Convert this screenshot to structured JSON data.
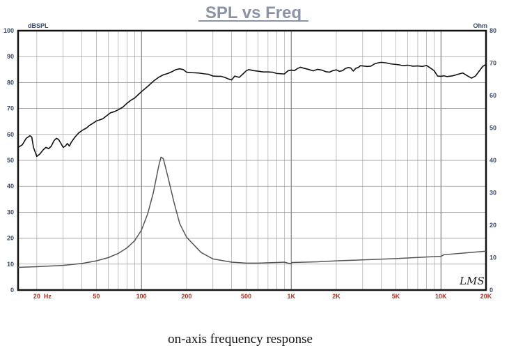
{
  "caption": "on-axis frequency response",
  "chart_data": {
    "type": "line",
    "title": "SPL vs Freq",
    "left_axis": {
      "label": "dBSPL",
      "ylim": [
        0,
        100
      ],
      "ticks": [
        0,
        10,
        20,
        30,
        40,
        50,
        60,
        70,
        80,
        90,
        100
      ]
    },
    "right_axis": {
      "label": "Ohm",
      "ylim": [
        0,
        80
      ],
      "ticks": [
        0,
        10,
        20,
        30,
        40,
        50,
        60,
        70,
        80
      ]
    },
    "x_axis": {
      "scale": "log",
      "xlim": [
        15,
        20000
      ],
      "unit_label": "Hz",
      "ticks": [
        {
          "value": 20,
          "label": "20"
        },
        {
          "value": 50,
          "label": "50"
        },
        {
          "value": 100,
          "label": "100"
        },
        {
          "value": 200,
          "label": "200"
        },
        {
          "value": 500,
          "label": "500"
        },
        {
          "value": 1000,
          "label": "1K"
        },
        {
          "value": 2000,
          "label": "2K"
        },
        {
          "value": 5000,
          "label": "5K"
        },
        {
          "value": 10000,
          "label": "10K"
        },
        {
          "value": 20000,
          "label": "20K"
        }
      ]
    },
    "grid": true,
    "logo_text": "LMS",
    "series": [
      {
        "axis": "left",
        "color": "#111111",
        "points": [
          [
            15,
            55
          ],
          [
            16,
            56
          ],
          [
            17,
            58.5
          ],
          [
            18,
            59.5
          ],
          [
            18.5,
            59
          ],
          [
            19,
            55
          ],
          [
            20,
            51.5
          ],
          [
            21,
            52.5
          ],
          [
            22,
            54
          ],
          [
            23,
            55
          ],
          [
            24,
            54.5
          ],
          [
            25,
            55.5
          ],
          [
            26,
            57.5
          ],
          [
            27,
            58.5
          ],
          [
            28,
            58
          ],
          [
            29,
            56.5
          ],
          [
            30,
            55
          ],
          [
            31,
            55.5
          ],
          [
            32,
            56.5
          ],
          [
            33,
            55.5
          ],
          [
            34,
            57
          ],
          [
            36,
            59
          ],
          [
            38,
            60.5
          ],
          [
            40,
            61.5
          ],
          [
            43,
            62.5
          ],
          [
            45,
            63.5
          ],
          [
            48,
            64.5
          ],
          [
            50,
            65.2
          ],
          [
            55,
            66
          ],
          [
            58,
            67
          ],
          [
            62,
            68.3
          ],
          [
            66,
            68.8
          ],
          [
            70,
            69.5
          ],
          [
            75,
            70.5
          ],
          [
            80,
            72
          ],
          [
            85,
            73.2
          ],
          [
            90,
            74
          ],
          [
            95,
            75.3
          ],
          [
            100,
            76.5
          ],
          [
            110,
            78.5
          ],
          [
            120,
            80.5
          ],
          [
            130,
            82
          ],
          [
            140,
            83
          ],
          [
            150,
            83.5
          ],
          [
            160,
            84.2
          ],
          [
            170,
            85
          ],
          [
            180,
            85.3
          ],
          [
            190,
            85
          ],
          [
            200,
            84
          ],
          [
            220,
            83.8
          ],
          [
            240,
            83.7
          ],
          [
            260,
            83.4
          ],
          [
            280,
            83.2
          ],
          [
            300,
            82.5
          ],
          [
            320,
            82.4
          ],
          [
            340,
            82.4
          ],
          [
            360,
            82
          ],
          [
            380,
            81.4
          ],
          [
            400,
            81
          ],
          [
            420,
            82.5
          ],
          [
            450,
            82
          ],
          [
            480,
            83.5
          ],
          [
            500,
            84.5
          ],
          [
            520,
            85
          ],
          [
            560,
            84.6
          ],
          [
            600,
            84.4
          ],
          [
            650,
            84.1
          ],
          [
            700,
            84.1
          ],
          [
            750,
            84
          ],
          [
            800,
            83.5
          ],
          [
            850,
            83.4
          ],
          [
            900,
            83.3
          ],
          [
            950,
            84.5
          ],
          [
            1000,
            84.8
          ],
          [
            1050,
            84.6
          ],
          [
            1100,
            85.4
          ],
          [
            1150,
            85.9
          ],
          [
            1200,
            85.6
          ],
          [
            1300,
            85.1
          ],
          [
            1400,
            84.5
          ],
          [
            1500,
            85.1
          ],
          [
            1600,
            84.8
          ],
          [
            1700,
            84.2
          ],
          [
            1800,
            84
          ],
          [
            1900,
            84.6
          ],
          [
            2000,
            84.9
          ],
          [
            2100,
            84.3
          ],
          [
            2200,
            84.6
          ],
          [
            2300,
            85.4
          ],
          [
            2400,
            85.8
          ],
          [
            2500,
            85.6
          ],
          [
            2600,
            84.4
          ],
          [
            2700,
            85.5
          ],
          [
            2800,
            85.8
          ],
          [
            2900,
            86.5
          ],
          [
            3000,
            86.4
          ],
          [
            3200,
            86.2
          ],
          [
            3400,
            86.3
          ],
          [
            3600,
            87.2
          ],
          [
            3800,
            87.6
          ],
          [
            4000,
            87.8
          ],
          [
            4300,
            87.6
          ],
          [
            4600,
            87.2
          ],
          [
            5000,
            87
          ],
          [
            5300,
            86.8
          ],
          [
            5600,
            86.5
          ],
          [
            6000,
            86.7
          ],
          [
            6500,
            86.3
          ],
          [
            7000,
            86.4
          ],
          [
            7500,
            86.2
          ],
          [
            8000,
            86.6
          ],
          [
            8500,
            85.6
          ],
          [
            9000,
            84.6
          ],
          [
            9500,
            82.5
          ],
          [
            10000,
            82.4
          ],
          [
            10500,
            82.6
          ],
          [
            11000,
            82.3
          ],
          [
            12000,
            82.6
          ],
          [
            13000,
            83.2
          ],
          [
            14000,
            83.7
          ],
          [
            15000,
            82.6
          ],
          [
            16000,
            81.7
          ],
          [
            17000,
            82.5
          ],
          [
            18000,
            84.4
          ],
          [
            19000,
            86.2
          ],
          [
            20000,
            87
          ]
        ]
      },
      {
        "axis": "right",
        "color": "#555555",
        "points": [
          [
            15,
            7
          ],
          [
            20,
            7.2
          ],
          [
            30,
            7.6
          ],
          [
            40,
            8.2
          ],
          [
            50,
            9
          ],
          [
            60,
            10
          ],
          [
            70,
            11.3
          ],
          [
            80,
            13
          ],
          [
            90,
            15.2
          ],
          [
            100,
            18.5
          ],
          [
            110,
            23.5
          ],
          [
            120,
            30
          ],
          [
            130,
            38
          ],
          [
            135,
            41
          ],
          [
            140,
            40.5
          ],
          [
            150,
            35
          ],
          [
            165,
            27
          ],
          [
            180,
            20.5
          ],
          [
            200,
            16.3
          ],
          [
            250,
            11.6
          ],
          [
            300,
            9.6
          ],
          [
            400,
            8.6
          ],
          [
            500,
            8.3
          ],
          [
            600,
            8.3
          ],
          [
            800,
            8.5
          ],
          [
            900,
            8.6
          ],
          [
            950,
            8.3
          ],
          [
            1000,
            8.2
          ],
          [
            1010,
            8.5
          ],
          [
            1500,
            8.7
          ],
          [
            2000,
            9
          ],
          [
            3000,
            9.3
          ],
          [
            5000,
            9.7
          ],
          [
            8000,
            10.2
          ],
          [
            10000,
            10.4
          ],
          [
            10500,
            10.9
          ],
          [
            15000,
            11.5
          ],
          [
            20000,
            12
          ]
        ]
      }
    ]
  }
}
